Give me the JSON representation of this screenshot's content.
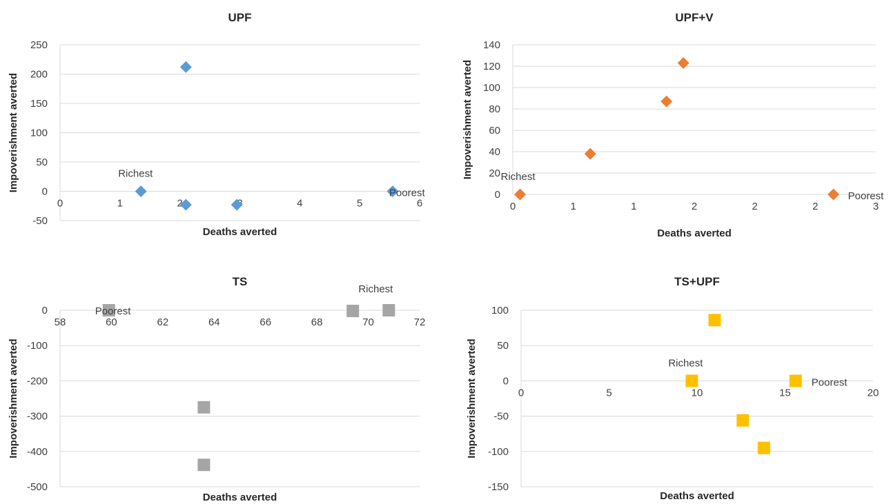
{
  "chart_data": [
    {
      "type": "scatter",
      "title": "UPF",
      "xlabel": "Deaths averted",
      "ylabel": "Impoverishment averted",
      "xlim": [
        0,
        6
      ],
      "ylim": [
        -50,
        250
      ],
      "x_ticks": [
        "0",
        "1",
        "2",
        "3",
        "4",
        "5",
        "6"
      ],
      "y_ticks": [
        "-50",
        "0",
        "50",
        "100",
        "150",
        "200",
        "250"
      ],
      "grid": true,
      "marker": "diamond",
      "color": "#5b9bd5",
      "points": [
        {
          "x": 1.35,
          "y": 0
        },
        {
          "x": 2.1,
          "y": 212
        },
        {
          "x": 2.1,
          "y": -23
        },
        {
          "x": 2.95,
          "y": -23
        },
        {
          "x": 5.55,
          "y": 0
        }
      ],
      "annotations": [
        {
          "text": "Richest",
          "x": 1.35,
          "y": 0
        },
        {
          "text": "Poorest",
          "x": 5.55,
          "y": 0
        }
      ]
    },
    {
      "type": "scatter",
      "title": "UPF+V",
      "xlabel": "Deaths averted",
      "ylabel": "Impoverishment averted",
      "xlim": [
        0,
        3
      ],
      "ylim": [
        0,
        140
      ],
      "x_ticks": [
        "0",
        "1",
        "1",
        "2",
        "2",
        "2",
        "3"
      ],
      "y_ticks": [
        "0",
        "20",
        "40",
        "60",
        "80",
        "100",
        "120",
        "140"
      ],
      "grid": true,
      "marker": "diamond",
      "color": "#ed7d31",
      "points": [
        {
          "x": 0.06,
          "y": 0
        },
        {
          "x": 0.64,
          "y": 38
        },
        {
          "x": 1.27,
          "y": 87
        },
        {
          "x": 1.41,
          "y": 123
        },
        {
          "x": 2.65,
          "y": 0
        }
      ],
      "annotations": [
        {
          "text": "Richest",
          "x": 0.06,
          "y": 0
        },
        {
          "text": "Poorest",
          "x": 2.65,
          "y": 0
        }
      ]
    },
    {
      "type": "scatter",
      "title": "TS",
      "xlabel": "Deaths averted",
      "ylabel": "Impoverishment averted",
      "xlim": [
        58,
        72
      ],
      "ylim": [
        -500,
        0
      ],
      "x_ticks": [
        "58",
        "60",
        "62",
        "64",
        "66",
        "68",
        "70",
        "72"
      ],
      "y_ticks": [
        "-500",
        "-400",
        "-300",
        "-200",
        "-100",
        "0"
      ],
      "grid": true,
      "marker": "square",
      "color": "#a5a5a5",
      "points": [
        {
          "x": 59.9,
          "y": 0
        },
        {
          "x": 63.6,
          "y": -275
        },
        {
          "x": 63.6,
          "y": -438
        },
        {
          "x": 69.4,
          "y": -2
        },
        {
          "x": 70.8,
          "y": 0
        }
      ],
      "annotations": [
        {
          "text": "Poorest",
          "x": 59.9,
          "y": 0
        },
        {
          "text": "Richest",
          "x": 70.8,
          "y": 0
        }
      ]
    },
    {
      "type": "scatter",
      "title": "TS+UPF",
      "xlabel": "Deaths averted",
      "ylabel": "Impoverishment averted",
      "xlim": [
        0,
        20
      ],
      "ylim": [
        -150,
        100
      ],
      "x_ticks": [
        "0",
        "5",
        "10",
        "15",
        "20"
      ],
      "y_ticks": [
        "-150",
        "-100",
        "-50",
        "0",
        "50",
        "100"
      ],
      "grid": true,
      "marker": "square",
      "color": "#ffc000",
      "points": [
        {
          "x": 9.7,
          "y": 0
        },
        {
          "x": 11.0,
          "y": 86
        },
        {
          "x": 12.6,
          "y": -56
        },
        {
          "x": 13.8,
          "y": -95
        },
        {
          "x": 15.6,
          "y": 0
        }
      ],
      "annotations": [
        {
          "text": "Richest",
          "x": 9.7,
          "y": 0
        },
        {
          "text": "Poorest",
          "x": 15.6,
          "y": 0
        }
      ]
    }
  ]
}
